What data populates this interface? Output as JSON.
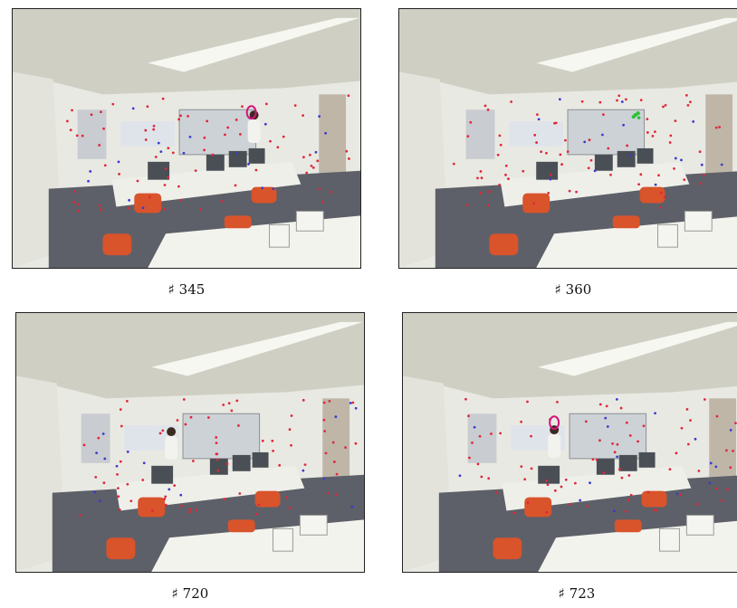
{
  "figure": {
    "panels": [
      {
        "caption": "♯ 345",
        "marker": "ellipse",
        "marker_color": "#d4147a",
        "person_visible": true
      },
      {
        "caption": "♯ 360",
        "marker": "track-points",
        "marker_color": "#2fbf3a",
        "person_visible": false
      },
      {
        "caption": "♯ 720",
        "marker": "none",
        "marker_color": "",
        "person_visible": true
      },
      {
        "caption": "♯ 723",
        "marker": "ellipse",
        "marker_color": "#d4147a",
        "person_visible": true
      }
    ],
    "colors": {
      "feature_point_red": "#e0273a",
      "feature_point_blue": "#3a3ad0",
      "chair_red": "#d9532b",
      "ceiling": "#cfcfc4",
      "wall": "#e9e9e3",
      "floor": "#5d6068"
    }
  }
}
